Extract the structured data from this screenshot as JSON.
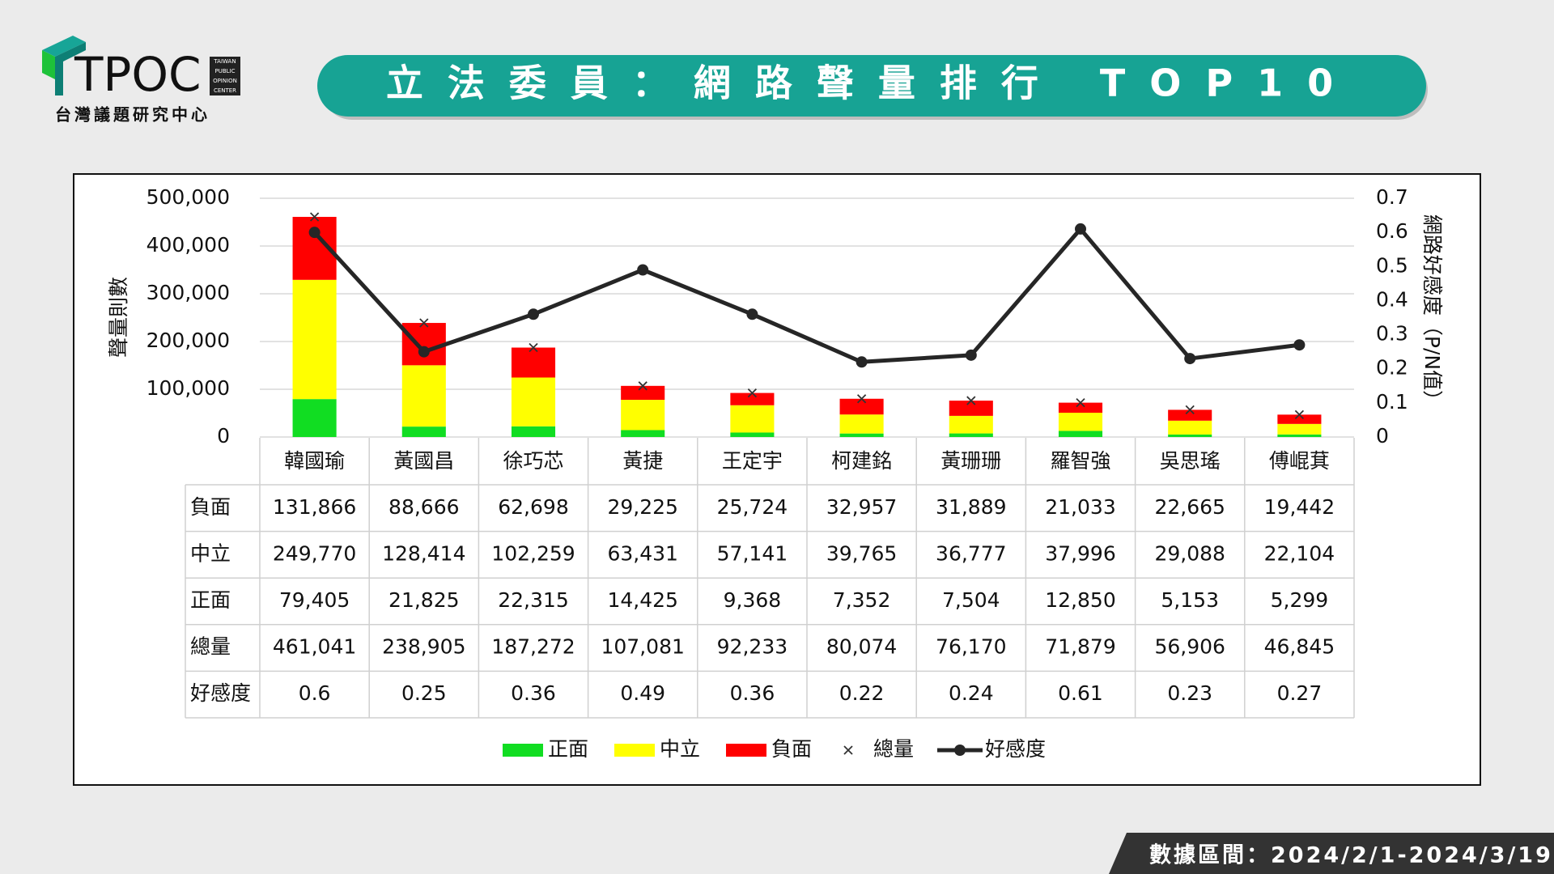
{
  "logo": {
    "name": "TPOC",
    "tagline": [
      "TAIWAN",
      "PUBLIC",
      "OPINION",
      "CENTER"
    ],
    "subtitle": "台灣議題研究中心"
  },
  "footer": "數據區間：2024/2/1-2024/3/19",
  "chart_data": {
    "type": "bar",
    "title": "立法委員：網路聲量排行 TOP10",
    "y_label": "聲量則數",
    "y2_label": "網路好感度（P/N值）",
    "categories": [
      "韓國瑜",
      "黃國昌",
      "徐巧芯",
      "黃捷",
      "王定宇",
      "柯建銘",
      "黃珊珊",
      "羅智強",
      "吳思瑤",
      "傅崐萁"
    ],
    "ylim": [
      0,
      500000
    ],
    "yticks": [
      0,
      {
        "value": 100000,
        "label": "100,000"
      },
      {
        "value": 200000,
        "label": "200,000"
      },
      {
        "value": 300000,
        "label": "300,000"
      },
      {
        "value": 400000,
        "label": "400,000"
      },
      {
        "value": 500000,
        "label": "500,000"
      }
    ],
    "y2lim": [
      0,
      0.7
    ],
    "y2ticks": [
      0,
      0.1,
      0.2,
      0.3,
      0.4,
      0.5,
      0.6,
      0.7
    ],
    "grid": true,
    "stacked": true,
    "series": [
      {
        "name": "負面",
        "type": "bar",
        "color": "#ff0000",
        "values": [
          131866,
          88666,
          62698,
          29225,
          25724,
          32957,
          31889,
          21033,
          22665,
          19442
        ],
        "value_labels": [
          "131,866",
          "88,666",
          "62,698",
          "29,225",
          "25,724",
          "32,957",
          "31,889",
          "21,033",
          "22,665",
          "19,442"
        ]
      },
      {
        "name": "中立",
        "type": "bar",
        "color": "#ffff00",
        "values": [
          249770,
          128414,
          102259,
          63431,
          57141,
          39765,
          36777,
          37996,
          29088,
          22104
        ],
        "value_labels": [
          "249,770",
          "128,414",
          "102,259",
          "63,431",
          "57,141",
          "39,765",
          "36,777",
          "37,996",
          "29,088",
          "22,104"
        ]
      },
      {
        "name": "正面",
        "type": "bar",
        "color": "#11dd22",
        "values": [
          79405,
          21825,
          22315,
          14425,
          9368,
          7352,
          7504,
          12850,
          5153,
          5299
        ],
        "value_labels": [
          "79,405",
          "21,825",
          "22,315",
          "14,425",
          "9,368",
          "7,352",
          "7,504",
          "12,850",
          "5,153",
          "5,299"
        ]
      },
      {
        "name": "總量",
        "type": "scatter",
        "color": "#333333",
        "values": [
          461041,
          238905,
          187272,
          107081,
          92233,
          80074,
          76170,
          71879,
          56906,
          46845
        ],
        "value_labels": [
          "461,041",
          "238,905",
          "187,272",
          "107,081",
          "92,233",
          "80,074",
          "76,170",
          "71,879",
          "56,906",
          "46,845"
        ]
      },
      {
        "name": "好感度",
        "type": "line",
        "axis": "y2",
        "color": "#262626",
        "values": [
          0.6,
          0.25,
          0.36,
          0.49,
          0.36,
          0.22,
          0.24,
          0.61,
          0.23,
          0.27
        ]
      }
    ]
  }
}
